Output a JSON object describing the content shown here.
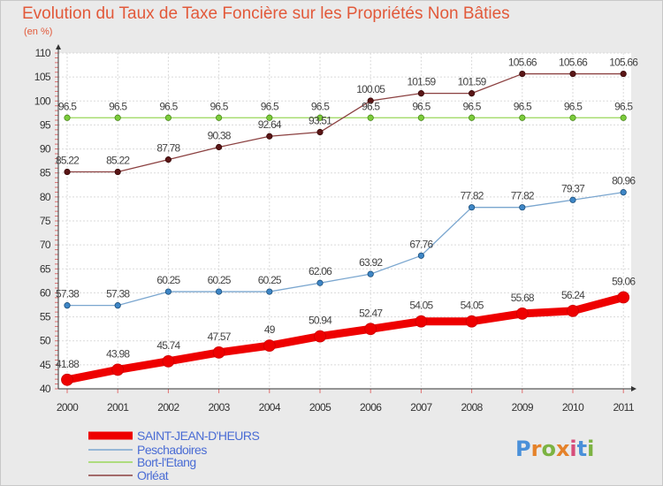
{
  "title": "Evolution du Taux de Taxe Foncière sur les Propriétés Non Bâties",
  "unit_label": "(en %)",
  "logo_text": "Proxiti",
  "chart_data": {
    "type": "line",
    "title": "Evolution du Taux de Taxe Foncière sur les Propriétés Non Bâties",
    "ylabel": "(en %)",
    "xlabel": "",
    "categories": [
      "2000",
      "2001",
      "2002",
      "2003",
      "2004",
      "2005",
      "2006",
      "2007",
      "2008",
      "2009",
      "2010",
      "2011"
    ],
    "ylim": [
      40,
      110
    ],
    "yticks": [
      40,
      45,
      50,
      55,
      60,
      65,
      70,
      75,
      80,
      85,
      90,
      95,
      100,
      105,
      110
    ],
    "grid": true,
    "legend_position": "bottom-left",
    "series": [
      {
        "name": "SAINT-JEAN-D'HEURS",
        "color": "#ee0000",
        "values": [
          41.88,
          43.98,
          45.74,
          47.57,
          49,
          50.94,
          52.47,
          54.05,
          54.05,
          55.68,
          56.24,
          59.06
        ],
        "labels": [
          "41.88",
          "43.98",
          "45.74",
          "47.57",
          "49",
          "50.94",
          "52.47",
          "54.05",
          "54.05",
          "55.68",
          "56.24",
          "59.06"
        ]
      },
      {
        "name": "Peschadoires",
        "color": "#7aa6cf",
        "values": [
          57.38,
          57.38,
          60.25,
          60.25,
          60.25,
          62.06,
          63.92,
          67.76,
          77.82,
          77.82,
          79.37,
          80.96
        ],
        "labels": [
          "57.38",
          "57.38",
          "60.25",
          "60.25",
          "60.25",
          "62.06",
          "63.92",
          "67.76",
          "77.82",
          "77.82",
          "79.37",
          "80.96"
        ]
      },
      {
        "name": "Bort-l'Etang",
        "color": "#99d75a",
        "values": [
          96.5,
          96.5,
          96.5,
          96.5,
          96.5,
          96.5,
          96.5,
          96.5,
          96.5,
          96.5,
          96.5,
          96.5
        ],
        "labels": [
          "96.5",
          "96.5",
          "96.5",
          "96.5",
          "96.5",
          "96.5",
          "96.5",
          "96.5",
          "96.5",
          "96.5",
          "96.5",
          "96.5"
        ]
      },
      {
        "name": "Orléat",
        "color": "#8b4040",
        "values": [
          85.22,
          85.22,
          87.78,
          90.38,
          92.64,
          93.51,
          100.05,
          101.59,
          101.59,
          105.66,
          105.66,
          105.66
        ],
        "labels": [
          "85.22",
          "85.22",
          "87.78",
          "90.38",
          "92.64",
          "93.51",
          "100.05",
          "101.59",
          "101.59",
          "105.66",
          "105.66",
          "105.66"
        ]
      }
    ]
  }
}
